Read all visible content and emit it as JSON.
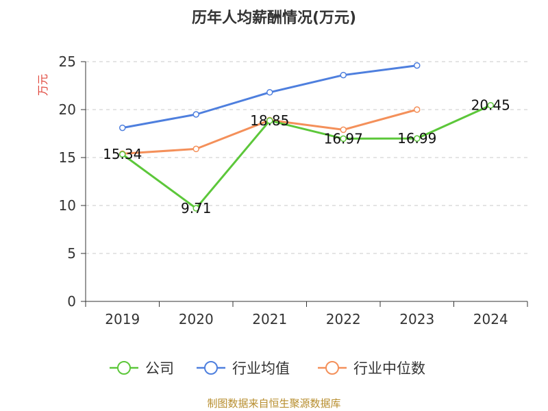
{
  "chart_data": {
    "type": "line",
    "title": "历年人均薪酬情况(万元)",
    "ylabel": "万元",
    "xlabel": "",
    "categories": [
      "2019",
      "2020",
      "2021",
      "2022",
      "2023",
      "2024"
    ],
    "ylim": [
      0,
      25
    ],
    "yticks": [
      0,
      5,
      10,
      15,
      20,
      25
    ],
    "grid": "horizontal-dashed",
    "legend_position": "bottom",
    "series": [
      {
        "name": "公司",
        "color": "#5cc73a",
        "values": [
          15.34,
          9.71,
          18.85,
          16.97,
          16.99,
          20.45
        ],
        "labels": [
          "15.34",
          "9.71",
          "18.85",
          "16.97",
          "16.99",
          "20.45"
        ]
      },
      {
        "name": "行业均值",
        "color": "#4e7fde",
        "values": [
          18.1,
          19.5,
          21.8,
          23.6,
          24.6,
          null
        ]
      },
      {
        "name": "行业中位数",
        "color": "#f4905a",
        "values": [
          15.4,
          15.9,
          18.9,
          17.9,
          20.0,
          null
        ]
      }
    ]
  },
  "footer": {
    "source": "制图数据来自恒生聚源数据库"
  }
}
